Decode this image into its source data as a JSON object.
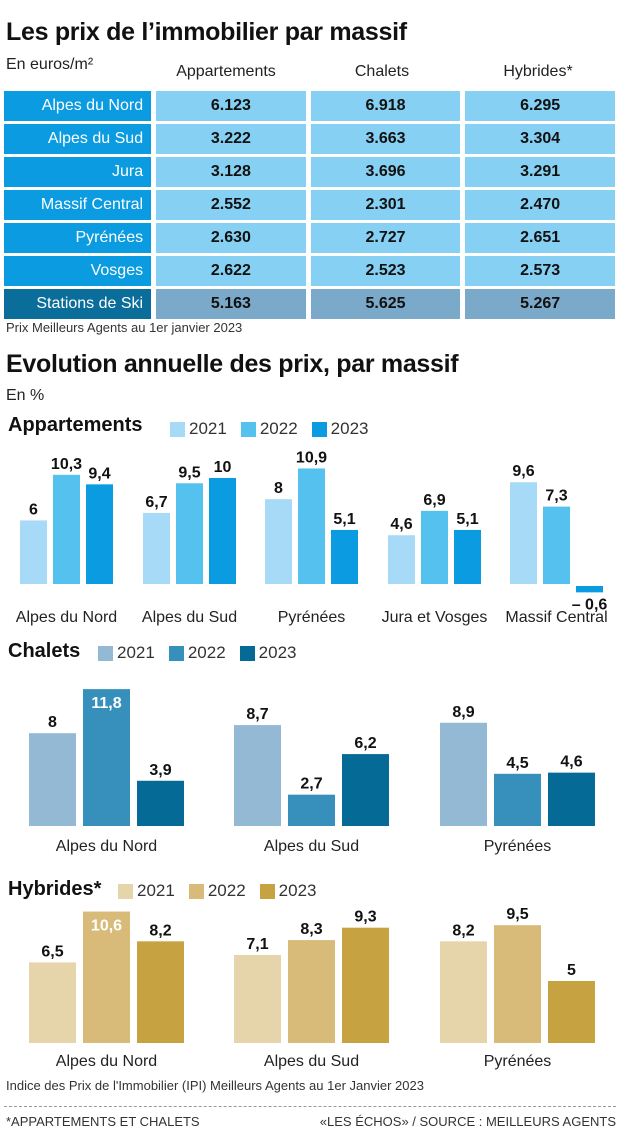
{
  "header": {
    "title": "Les prix de l’immobilier par massif",
    "unit": "En euros/m²"
  },
  "price_table": {
    "columns": [
      "Appartements",
      "Chalets",
      "Hybrides*"
    ],
    "rows": [
      {
        "label": "Alpes du Nord",
        "values": [
          "6.123",
          "6.918",
          "6.295"
        ]
      },
      {
        "label": "Alpes du Sud",
        "values": [
          "3.222",
          "3.663",
          "3.304"
        ]
      },
      {
        "label": "Jura",
        "values": [
          "3.128",
          "3.696",
          "3.291"
        ]
      },
      {
        "label": "Massif Central",
        "values": [
          "2.552",
          "2.301",
          "2.470"
        ]
      },
      {
        "label": "Pyrénées",
        "values": [
          "2.630",
          "2.727",
          "2.651"
        ]
      },
      {
        "label": "Vosges",
        "values": [
          "2.622",
          "2.523",
          "2.573"
        ]
      },
      {
        "label": "Stations de Ski",
        "values": [
          "5.163",
          "5.625",
          "5.267"
        ]
      }
    ],
    "note": "Prix Meilleurs Agents au 1er janvier 2023",
    "colors": {
      "label_bg": "#0a9be0",
      "cell_bg": "#86d0f3",
      "ski_label_bg": "#0a6d9a",
      "ski_cell_bg": "#7aa9c9"
    }
  },
  "evolution": {
    "title": "Evolution annuelle des prix, par massif",
    "unit": "En %"
  },
  "chart_data": [
    {
      "type": "bar",
      "title": "Appartements",
      "categories": [
        "Alpes du Nord",
        "Alpes du Sud",
        "Pyrénées",
        "Jura et Vosges",
        "Massif Central"
      ],
      "series": [
        {
          "name": "2021",
          "color": "#a6daf6",
          "values": [
            6,
            6.7,
            8,
            4.6,
            9.6
          ],
          "labels": [
            "6",
            "6,7",
            "8",
            "4,6",
            "9,6"
          ]
        },
        {
          "name": "2022",
          "color": "#55c1ef",
          "values": [
            10.3,
            9.5,
            10.9,
            6.9,
            7.3
          ],
          "labels": [
            "10,3",
            "9,5",
            "10,9",
            "6,9",
            "7,3"
          ]
        },
        {
          "name": "2023",
          "color": "#0a9be0",
          "values": [
            9.4,
            10,
            5.1,
            5.1,
            -0.6
          ],
          "labels": [
            "9,4",
            "10",
            "5,1",
            "5,1",
            "– 0,6"
          ]
        }
      ],
      "xlabel": "",
      "ylabel": "%",
      "ylim": [
        -1,
        12
      ],
      "grid": false,
      "legend": "top-left"
    },
    {
      "type": "bar",
      "title": "Chalets",
      "categories": [
        "Alpes du Nord",
        "Alpes du Sud",
        "Pyrénées"
      ],
      "series": [
        {
          "name": "2021",
          "color": "#93b9d4",
          "values": [
            8,
            8.7,
            8.9
          ],
          "labels": [
            "8",
            "8,7",
            "8,9"
          ]
        },
        {
          "name": "2022",
          "color": "#3790bb",
          "values": [
            11.8,
            2.7,
            4.5
          ],
          "labels": [
            "11,8",
            "2,7",
            "4,5"
          ]
        },
        {
          "name": "2023",
          "color": "#066a97",
          "values": [
            3.9,
            6.2,
            4.6
          ],
          "labels": [
            "3,9",
            "6,2",
            "4,6"
          ]
        }
      ],
      "xlabel": "",
      "ylabel": "%",
      "ylim": [
        0,
        12
      ],
      "grid": false,
      "legend": "top-left"
    },
    {
      "type": "bar",
      "title": "Hybrides*",
      "categories": [
        "Alpes du Nord",
        "Alpes du Sud",
        "Pyrénées"
      ],
      "series": [
        {
          "name": "2021",
          "color": "#e6d5ab",
          "values": [
            6.5,
            7.1,
            8.2
          ],
          "labels": [
            "6,5",
            "7,1",
            "8,2"
          ]
        },
        {
          "name": "2022",
          "color": "#d8ba79",
          "values": [
            10.6,
            8.3,
            9.5
          ],
          "labels": [
            "10,6",
            "8,3",
            "9,5"
          ]
        },
        {
          "name": "2023",
          "color": "#c6a340",
          "values": [
            8.2,
            9.3,
            5
          ],
          "labels": [
            "8,2",
            "9,3",
            "5"
          ]
        }
      ],
      "xlabel": "",
      "ylabel": "%",
      "ylim": [
        0,
        11
      ],
      "grid": false,
      "legend": "top-left"
    }
  ],
  "footer": {
    "index_note": "Indice des Prix de l'Immobilier (IPI) Meilleurs Agents au 1er Janvier 2023",
    "footnote": "*APPARTEMENTS ET CHALETS",
    "source": "«LES ÉCHOS» / SOURCE : MEILLEURS AGENTS"
  }
}
